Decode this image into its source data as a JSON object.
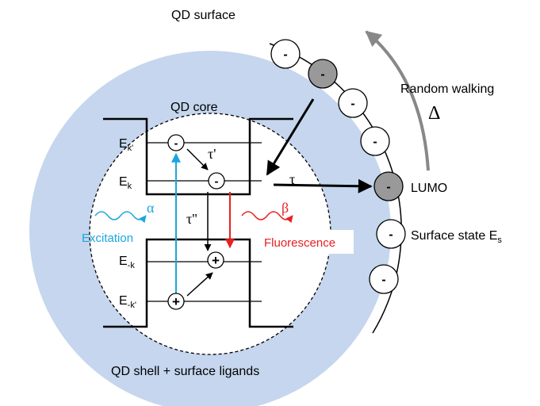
{
  "surface_label": "QD surface",
  "random_walking": {
    "label": "Random walking",
    "symbol": "Δ"
  },
  "core_label": "QD core",
  "shell_label": "QD shell + surface ligands",
  "levels": [
    {
      "base": "E",
      "sub": "k'"
    },
    {
      "base": "E",
      "sub": "k"
    },
    {
      "base": "E",
      "sub": "-k"
    },
    {
      "base": "E",
      "sub": "-k'"
    }
  ],
  "rates": {
    "tau_prime": "τ'",
    "tau": "τ",
    "tau_double": "τ''"
  },
  "excitation": {
    "symbol": "α",
    "label": "Excitation"
  },
  "fluorescence": {
    "symbol": "β",
    "label": "Fluorescence"
  },
  "lumo": "LUMO",
  "surface_state": {
    "label": "Surface state E",
    "sub": "s"
  },
  "charges": {
    "electron": "-",
    "hole": "+"
  }
}
